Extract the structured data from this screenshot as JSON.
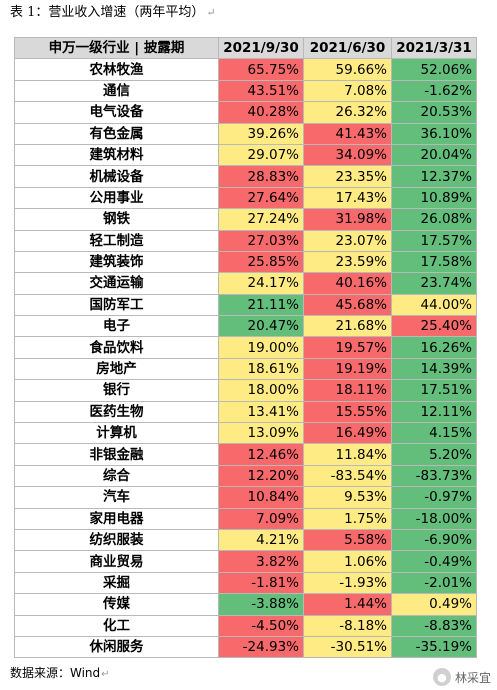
{
  "caption": {
    "text": "表 1：营业收入增速（两年平均）",
    "mark": "↵"
  },
  "table": {
    "headers": [
      "申万一级行业 | 披露期",
      "2021/9/30",
      "2021/6/30",
      "2021/3/31"
    ],
    "rows": [
      {
        "name": "农林牧渔",
        "v": [
          "65.75%",
          "59.66%",
          "52.06%"
        ],
        "c": [
          "red",
          "yellow",
          "green"
        ]
      },
      {
        "name": "通信",
        "v": [
          "43.51%",
          "7.08%",
          "-1.62%"
        ],
        "c": [
          "red",
          "yellow",
          "green"
        ]
      },
      {
        "name": "电气设备",
        "v": [
          "40.28%",
          "26.32%",
          "20.53%"
        ],
        "c": [
          "red",
          "yellow",
          "green"
        ]
      },
      {
        "name": "有色金属",
        "v": [
          "39.26%",
          "41.43%",
          "36.10%"
        ],
        "c": [
          "yellow",
          "red",
          "green"
        ]
      },
      {
        "name": "建筑材料",
        "v": [
          "29.07%",
          "34.09%",
          "20.04%"
        ],
        "c": [
          "yellow",
          "red",
          "green"
        ]
      },
      {
        "name": "机械设备",
        "v": [
          "28.83%",
          "23.35%",
          "12.37%"
        ],
        "c": [
          "red",
          "yellow",
          "green"
        ]
      },
      {
        "name": "公用事业",
        "v": [
          "27.64%",
          "17.43%",
          "10.89%"
        ],
        "c": [
          "red",
          "yellow",
          "green"
        ]
      },
      {
        "name": "钢铁",
        "v": [
          "27.24%",
          "31.98%",
          "26.08%"
        ],
        "c": [
          "yellow",
          "red",
          "green"
        ]
      },
      {
        "name": "轻工制造",
        "v": [
          "27.03%",
          "23.07%",
          "17.57%"
        ],
        "c": [
          "red",
          "yellow",
          "green"
        ]
      },
      {
        "name": "建筑装饰",
        "v": [
          "25.85%",
          "23.59%",
          "17.58%"
        ],
        "c": [
          "red",
          "yellow",
          "green"
        ]
      },
      {
        "name": "交通运输",
        "v": [
          "24.17%",
          "40.16%",
          "23.74%"
        ],
        "c": [
          "yellow",
          "red",
          "green"
        ]
      },
      {
        "name": "国防军工",
        "v": [
          "21.11%",
          "45.68%",
          "44.00%"
        ],
        "c": [
          "green",
          "red",
          "yellow"
        ]
      },
      {
        "name": "电子",
        "v": [
          "20.47%",
          "21.68%",
          "25.40%"
        ],
        "c": [
          "green",
          "yellow",
          "red"
        ]
      },
      {
        "name": "食品饮料",
        "v": [
          "19.00%",
          "19.57%",
          "16.26%"
        ],
        "c": [
          "yellow",
          "red",
          "green"
        ]
      },
      {
        "name": "房地产",
        "v": [
          "18.61%",
          "19.19%",
          "14.39%"
        ],
        "c": [
          "yellow",
          "red",
          "green"
        ]
      },
      {
        "name": "银行",
        "v": [
          "18.00%",
          "18.11%",
          "17.51%"
        ],
        "c": [
          "yellow",
          "red",
          "green"
        ]
      },
      {
        "name": "医药生物",
        "v": [
          "13.41%",
          "15.55%",
          "12.11%"
        ],
        "c": [
          "yellow",
          "red",
          "green"
        ]
      },
      {
        "name": "计算机",
        "v": [
          "13.09%",
          "16.49%",
          "4.15%"
        ],
        "c": [
          "yellow",
          "red",
          "green"
        ]
      },
      {
        "name": "非银金融",
        "v": [
          "12.46%",
          "11.84%",
          "5.20%"
        ],
        "c": [
          "red",
          "yellow",
          "green"
        ]
      },
      {
        "name": "综合",
        "v": [
          "12.20%",
          "-83.54%",
          "-83.73%"
        ],
        "c": [
          "red",
          "yellow",
          "green"
        ]
      },
      {
        "name": "汽车",
        "v": [
          "10.84%",
          "9.53%",
          "-0.97%"
        ],
        "c": [
          "red",
          "yellow",
          "green"
        ]
      },
      {
        "name": "家用电器",
        "v": [
          "7.09%",
          "1.75%",
          "-18.00%"
        ],
        "c": [
          "red",
          "yellow",
          "green"
        ]
      },
      {
        "name": "纺织服装",
        "v": [
          "4.21%",
          "5.58%",
          "-6.90%"
        ],
        "c": [
          "yellow",
          "red",
          "green"
        ]
      },
      {
        "name": "商业贸易",
        "v": [
          "3.82%",
          "1.06%",
          "-0.49%"
        ],
        "c": [
          "red",
          "yellow",
          "green"
        ]
      },
      {
        "name": "采掘",
        "v": [
          "-1.81%",
          "-1.93%",
          "-2.01%"
        ],
        "c": [
          "red",
          "yellow",
          "green"
        ]
      },
      {
        "name": "传媒",
        "v": [
          "-3.88%",
          "1.44%",
          "0.49%"
        ],
        "c": [
          "green",
          "red",
          "yellow"
        ]
      },
      {
        "name": "化工",
        "v": [
          "-4.50%",
          "-8.18%",
          "-8.83%"
        ],
        "c": [
          "red",
          "yellow",
          "green"
        ]
      },
      {
        "name": "休闲服务",
        "v": [
          "-24.93%",
          "-30.51%",
          "-35.19%"
        ],
        "c": [
          "red",
          "yellow",
          "green"
        ]
      }
    ]
  },
  "source": {
    "text": "数据来源：Wind",
    "mark": "↵"
  },
  "watermark": {
    "text": "林采宜"
  },
  "colors": {
    "red": "#f8696b",
    "yellow": "#ffeb84",
    "green": "#63be7b",
    "header": "#d9d9d9"
  }
}
